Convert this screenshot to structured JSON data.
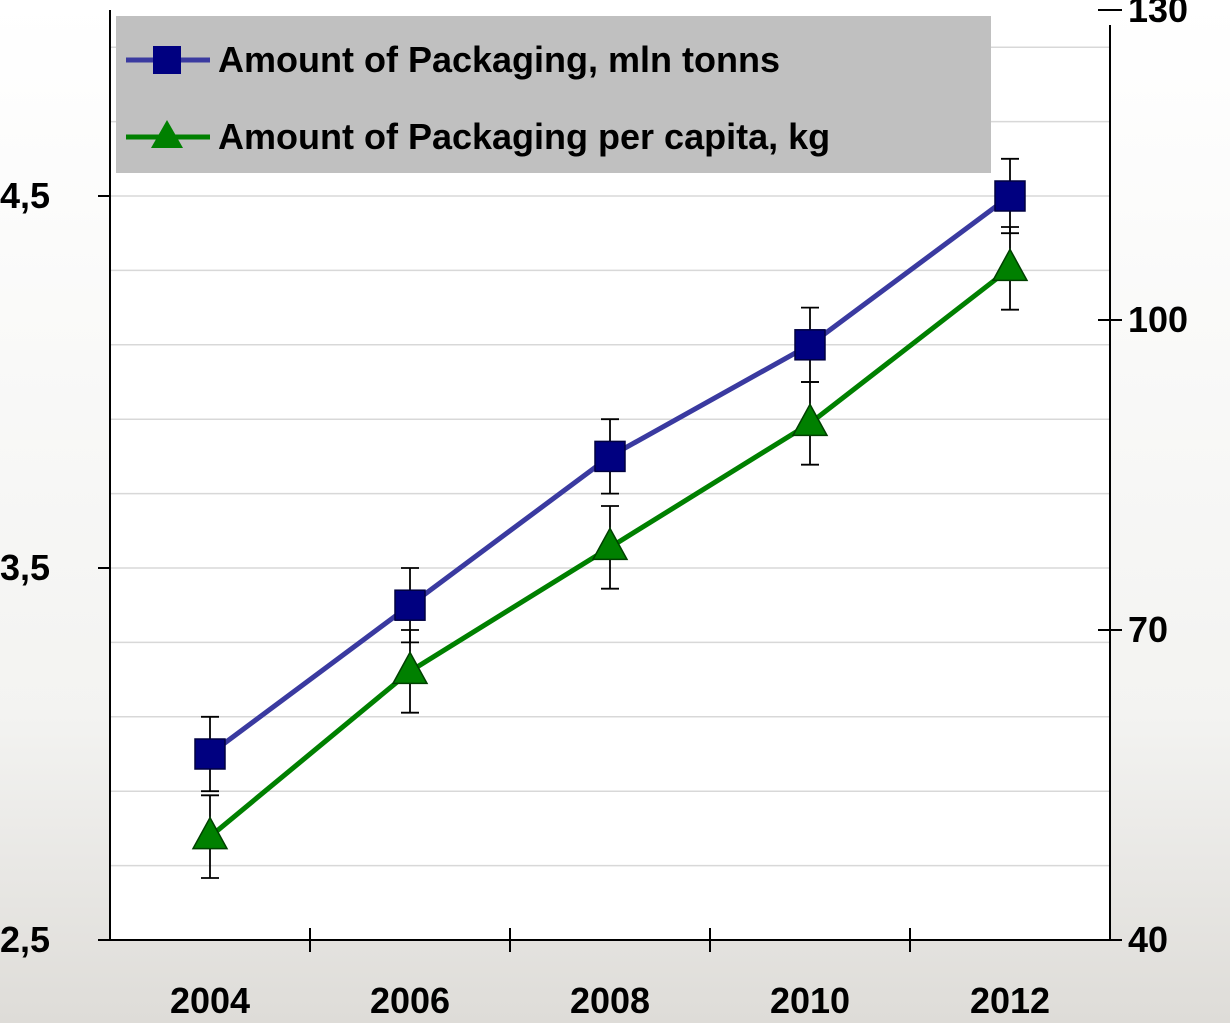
{
  "chart_data": {
    "type": "line",
    "categories": [
      "2004",
      "2006",
      "2008",
      "2010",
      "2012"
    ],
    "series": [
      {
        "name": "Amount of Packaging, mln tonns",
        "axis": "left",
        "values": [
          3.0,
          3.4,
          3.8,
          4.1,
          4.5
        ],
        "error_low": [
          2.9,
          3.3,
          3.7,
          4.0,
          4.4
        ],
        "error_high": [
          3.1,
          3.5,
          3.9,
          4.2,
          4.6
        ],
        "marker": "square",
        "color": "#000080",
        "line_color": "#3a3aa0"
      },
      {
        "name": "Amount of Packaging per capita, kg",
        "axis": "right",
        "values": [
          50,
          66,
          78,
          90,
          105
        ],
        "error_low": [
          46,
          62,
          74,
          86,
          101
        ],
        "error_high": [
          54,
          70,
          82,
          94,
          109
        ],
        "marker": "triangle",
        "color": "#008000",
        "line_color": "#008000"
      }
    ],
    "left_axis": {
      "min": 2.5,
      "max": 5.0,
      "ticks": [
        2.5,
        3.5,
        4.5
      ],
      "tick_labels": [
        "2,5",
        "3,5",
        "4,5"
      ]
    },
    "right_axis": {
      "min": 40,
      "max": 130,
      "ticks": [
        40,
        70,
        100,
        130
      ],
      "tick_labels": [
        "40",
        "70",
        "100",
        "130"
      ]
    },
    "grid": true,
    "legend_position": "top-left",
    "title": "",
    "xlabel": "",
    "ylabel": ""
  }
}
